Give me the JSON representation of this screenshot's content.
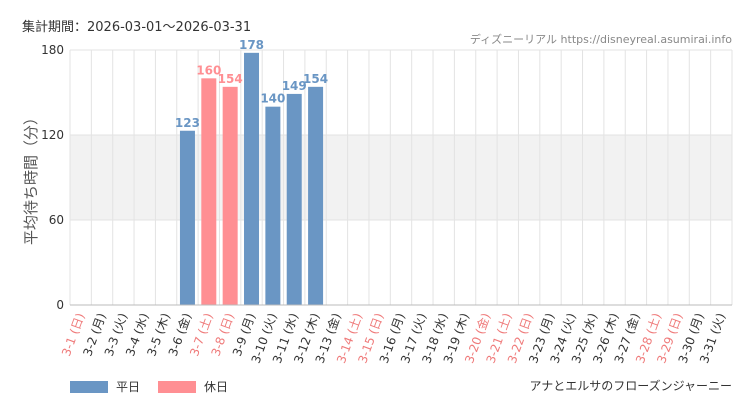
{
  "header": {
    "period_label": "集計期間：2026-03-01～2026-03-31",
    "credit": "ディズニーリアル https://disneyreal.asumirai.info"
  },
  "footer": {
    "attraction": "アナとエルサのフローズンジャーニー"
  },
  "colors": {
    "weekday": "#6a96c4",
    "holiday": "#ff8f93",
    "holiday_label": "#ef7a7a",
    "weekday_label": "#333333",
    "band": "#f2f2f2",
    "grid": "#e3e3e3"
  },
  "chart_data": {
    "type": "bar",
    "title": "",
    "xlabel": "",
    "ylabel": "平均待ち時間（分）",
    "ylim": [
      0,
      180
    ],
    "yticks": [
      0,
      60,
      120,
      180
    ],
    "grid": true,
    "legend_position": "bottom-left",
    "categories": [
      "3-1 (日)",
      "3-2 (月)",
      "3-3 (火)",
      "3-4 (水)",
      "3-5 (木)",
      "3-6 (金)",
      "3-7 (土)",
      "3-8 (日)",
      "3-9 (月)",
      "3-10 (火)",
      "3-11 (水)",
      "3-12 (木)",
      "3-13 (金)",
      "3-14 (土)",
      "3-15 (日)",
      "3-16 (月)",
      "3-17 (火)",
      "3-18 (水)",
      "3-19 (木)",
      "3-20 (金)",
      "3-21 (土)",
      "3-22 (日)",
      "3-23 (月)",
      "3-24 (火)",
      "3-25 (水)",
      "3-26 (木)",
      "3-27 (金)",
      "3-28 (土)",
      "3-29 (日)",
      "3-30 (月)",
      "3-31 (火)"
    ],
    "holiday": [
      true,
      false,
      false,
      false,
      false,
      false,
      true,
      true,
      false,
      false,
      false,
      false,
      false,
      true,
      true,
      false,
      false,
      false,
      false,
      true,
      true,
      true,
      false,
      false,
      false,
      false,
      false,
      true,
      true,
      false,
      false
    ],
    "series": [
      {
        "name": "平日",
        "values": [
          null,
          null,
          null,
          null,
          null,
          123,
          null,
          null,
          178,
          140,
          149,
          154,
          null,
          null,
          null,
          null,
          null,
          null,
          null,
          null,
          null,
          null,
          null,
          null,
          null,
          null,
          null,
          null,
          null,
          null,
          null
        ]
      },
      {
        "name": "休日",
        "values": [
          null,
          null,
          null,
          null,
          null,
          null,
          160,
          154,
          null,
          null,
          null,
          null,
          null,
          null,
          null,
          null,
          null,
          null,
          null,
          null,
          null,
          null,
          null,
          null,
          null,
          null,
          null,
          null,
          null,
          null,
          null
        ]
      }
    ]
  }
}
